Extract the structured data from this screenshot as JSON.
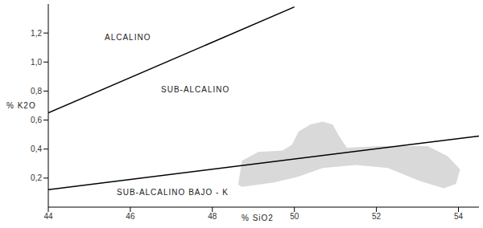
{
  "chart_data": {
    "type": "line",
    "x_label": "% SiO2",
    "y_label": "% K2O",
    "annotations": [
      "ALCALINO",
      "SUB-ALCALINO",
      "SUB-ALCALINO BAJO - K"
    ],
    "xlim": [
      44,
      54.5
    ],
    "xticks": [
      44,
      46,
      48,
      50,
      52,
      54
    ],
    "ylim": [
      0,
      1.4
    ],
    "yticks": [
      {
        "value": 0.2,
        "label": "0,2"
      },
      {
        "value": 0.4,
        "label": "0,4"
      },
      {
        "value": 0.6,
        "label": "0,6"
      },
      {
        "value": 0.8,
        "label": "0,8"
      },
      {
        "value": 1.0,
        "label": "1,0"
      },
      {
        "value": 1.2,
        "label": "1,2"
      }
    ],
    "grid": false,
    "series": [
      {
        "type": "area",
        "color": "#d9d9d9",
        "x": [
          48.63,
          48.72,
          49.12,
          49.71,
          49.94,
          50.1,
          50.39,
          50.69,
          50.93,
          51.09,
          51.28,
          52.07,
          53.25,
          53.74,
          54.04,
          53.94,
          53.64,
          53.06,
          52.28,
          51.5,
          50.69,
          50.1,
          49.51,
          48.72
        ],
        "values": [
          0.155,
          0.32,
          0.38,
          0.39,
          0.43,
          0.52,
          0.57,
          0.59,
          0.57,
          0.49,
          0.41,
          0.42,
          0.42,
          0.35,
          0.26,
          0.16,
          0.13,
          0.18,
          0.27,
          0.29,
          0.27,
          0.21,
          0.17,
          0.14
        ]
      },
      {
        "type": "line",
        "color": "#000000",
        "x": [
          44,
          50
        ],
        "values": [
          0.65,
          1.38
        ]
      },
      {
        "type": "line",
        "color": "#000000",
        "x": [
          44,
          54.5
        ],
        "values": [
          0.12,
          0.49
        ]
      }
    ]
  }
}
